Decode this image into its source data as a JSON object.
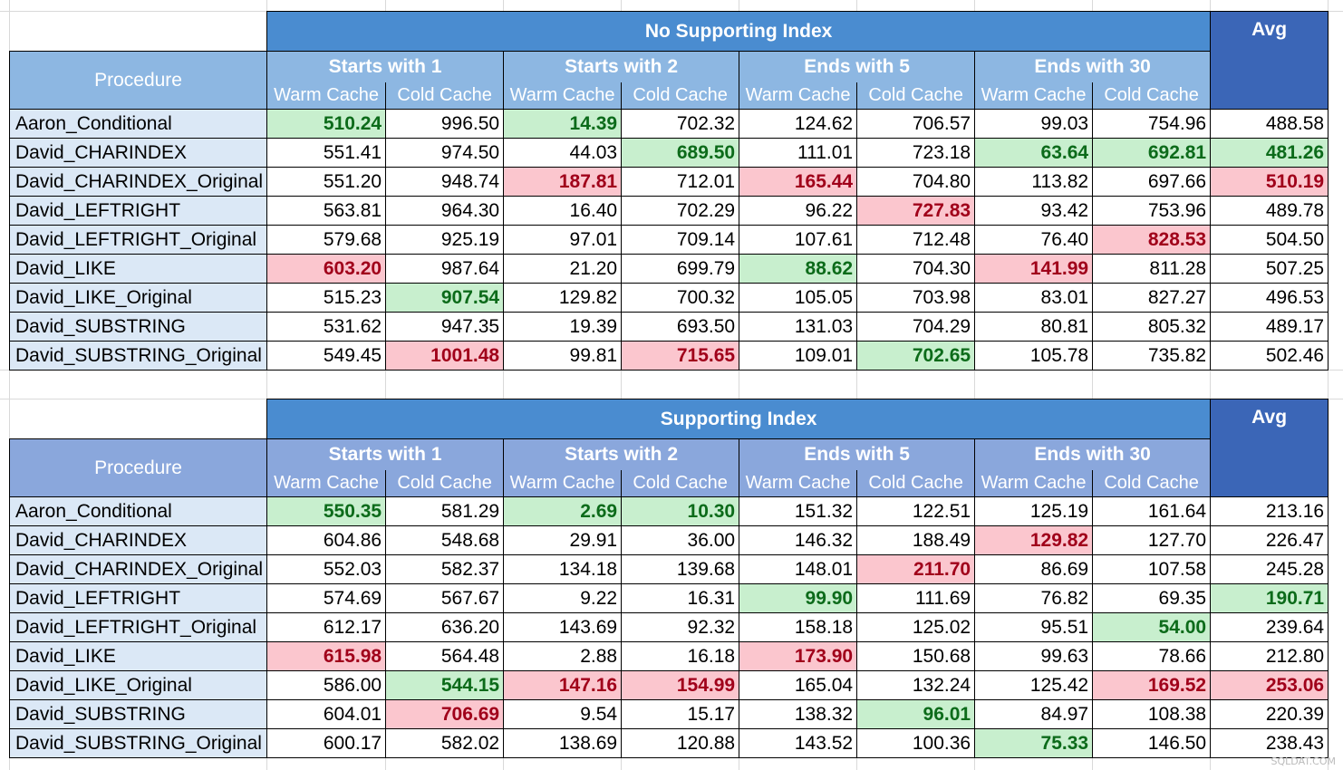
{
  "watermark": "SQLDAT.COM",
  "colors": {
    "good_bg": "#c8efce",
    "good_text": "#0c6b1a",
    "bad_bg": "#fbc6ce",
    "bad_text": "#a0001a",
    "header_blue": "#4a8cd0",
    "avg_blue": "#3b66b7"
  },
  "tables": [
    {
      "title": "No Supporting Index",
      "procedure_header": "Procedure",
      "avg_header": "Avg",
      "groups": [
        "Starts with 1",
        "Starts with 2",
        "Ends with 5",
        "Ends with 30"
      ],
      "subheaders": [
        "Warm Cache",
        "Cold Cache"
      ],
      "rows": [
        {
          "name": "Aaron_Conditional",
          "values": [
            "510.24",
            "996.50",
            "14.39",
            "702.32",
            "124.62",
            "706.57",
            "99.03",
            "754.96",
            "488.58"
          ],
          "marks": [
            "g",
            "",
            "g",
            "",
            "",
            "",
            "",
            "",
            ""
          ]
        },
        {
          "name": "David_CHARINDEX",
          "values": [
            "551.41",
            "974.50",
            "44.03",
            "689.50",
            "111.01",
            "723.18",
            "63.64",
            "692.81",
            "481.26"
          ],
          "marks": [
            "",
            "",
            "",
            "g",
            "",
            "",
            "g",
            "g",
            "g"
          ]
        },
        {
          "name": "David_CHARINDEX_Original",
          "values": [
            "551.20",
            "948.74",
            "187.81",
            "712.01",
            "165.44",
            "704.80",
            "113.82",
            "697.66",
            "510.19"
          ],
          "marks": [
            "",
            "",
            "b",
            "",
            "b",
            "",
            "",
            "",
            "b"
          ]
        },
        {
          "name": "David_LEFTRIGHT",
          "values": [
            "563.81",
            "964.30",
            "16.40",
            "702.29",
            "96.22",
            "727.83",
            "93.42",
            "753.96",
            "489.78"
          ],
          "marks": [
            "",
            "",
            "",
            "",
            "",
            "b",
            "",
            "",
            ""
          ]
        },
        {
          "name": "David_LEFTRIGHT_Original",
          "values": [
            "579.68",
            "925.19",
            "97.01",
            "709.14",
            "107.61",
            "712.48",
            "76.40",
            "828.53",
            "504.50"
          ],
          "marks": [
            "",
            "",
            "",
            "",
            "",
            "",
            "",
            "b",
            ""
          ]
        },
        {
          "name": "David_LIKE",
          "values": [
            "603.20",
            "987.64",
            "21.20",
            "699.79",
            "88.62",
            "704.30",
            "141.99",
            "811.28",
            "507.25"
          ],
          "marks": [
            "b",
            "",
            "",
            "",
            "g",
            "",
            "b",
            "",
            ""
          ]
        },
        {
          "name": "David_LIKE_Original",
          "values": [
            "515.23",
            "907.54",
            "129.82",
            "700.32",
            "105.05",
            "703.98",
            "83.01",
            "827.27",
            "496.53"
          ],
          "marks": [
            "",
            "g",
            "",
            "",
            "",
            "",
            "",
            "",
            ""
          ]
        },
        {
          "name": "David_SUBSTRING",
          "values": [
            "531.62",
            "947.35",
            "19.39",
            "693.50",
            "131.03",
            "704.29",
            "80.81",
            "805.32",
            "489.17"
          ],
          "marks": [
            "",
            "",
            "",
            "",
            "",
            "",
            "",
            "",
            ""
          ]
        },
        {
          "name": "David_SUBSTRING_Original",
          "values": [
            "549.45",
            "1001.48",
            "99.81",
            "715.65",
            "109.01",
            "702.65",
            "105.78",
            "735.82",
            "502.46"
          ],
          "marks": [
            "",
            "b",
            "",
            "b",
            "",
            "g",
            "",
            "",
            ""
          ]
        }
      ]
    },
    {
      "title": "Supporting Index",
      "procedure_header": "Procedure",
      "avg_header": "Avg",
      "groups": [
        "Starts with 1",
        "Starts with 2",
        "Ends with 5",
        "Ends with 30"
      ],
      "subheaders": [
        "Warm Cache",
        "Cold Cache"
      ],
      "rows": [
        {
          "name": "Aaron_Conditional",
          "values": [
            "550.35",
            "581.29",
            "2.69",
            "10.30",
            "151.32",
            "122.51",
            "125.19",
            "161.64",
            "213.16"
          ],
          "marks": [
            "g",
            "",
            "g",
            "g",
            "",
            "",
            "",
            "",
            ""
          ]
        },
        {
          "name": "David_CHARINDEX",
          "values": [
            "604.86",
            "548.68",
            "29.91",
            "36.00",
            "146.32",
            "188.49",
            "129.82",
            "127.70",
            "226.47"
          ],
          "marks": [
            "",
            "",
            "",
            "",
            "",
            "",
            "b",
            "",
            ""
          ]
        },
        {
          "name": "David_CHARINDEX_Original",
          "values": [
            "552.03",
            "582.37",
            "134.18",
            "139.68",
            "148.01",
            "211.70",
            "86.69",
            "107.58",
            "245.28"
          ],
          "marks": [
            "",
            "",
            "",
            "",
            "",
            "b",
            "",
            "",
            ""
          ]
        },
        {
          "name": "David_LEFTRIGHT",
          "values": [
            "574.69",
            "567.67",
            "9.22",
            "16.31",
            "99.90",
            "111.69",
            "76.82",
            "69.35",
            "190.71"
          ],
          "marks": [
            "",
            "",
            "",
            "",
            "g",
            "",
            "",
            "",
            "g"
          ]
        },
        {
          "name": "David_LEFTRIGHT_Original",
          "values": [
            "612.17",
            "636.20",
            "143.69",
            "92.32",
            "158.18",
            "125.02",
            "95.51",
            "54.00",
            "239.64"
          ],
          "marks": [
            "",
            "",
            "",
            "",
            "",
            "",
            "",
            "g",
            ""
          ]
        },
        {
          "name": "David_LIKE",
          "values": [
            "615.98",
            "564.48",
            "2.88",
            "16.18",
            "173.90",
            "150.68",
            "99.63",
            "78.66",
            "212.80"
          ],
          "marks": [
            "b",
            "",
            "",
            "",
            "b",
            "",
            "",
            "",
            ""
          ]
        },
        {
          "name": "David_LIKE_Original",
          "values": [
            "586.00",
            "544.15",
            "147.16",
            "154.99",
            "165.04",
            "132.24",
            "125.42",
            "169.52",
            "253.06"
          ],
          "marks": [
            "",
            "g",
            "b",
            "b",
            "",
            "",
            "",
            "b",
            "b"
          ]
        },
        {
          "name": "David_SUBSTRING",
          "values": [
            "604.01",
            "706.69",
            "9.54",
            "15.17",
            "138.32",
            "96.01",
            "84.97",
            "108.38",
            "220.39"
          ],
          "marks": [
            "",
            "b",
            "",
            "",
            "",
            "g",
            "",
            "",
            ""
          ]
        },
        {
          "name": "David_SUBSTRING_Original",
          "values": [
            "600.17",
            "582.02",
            "138.69",
            "120.88",
            "143.52",
            "100.36",
            "75.33",
            "146.50",
            "238.43"
          ],
          "marks": [
            "",
            "",
            "",
            "",
            "",
            "",
            "g",
            "",
            ""
          ]
        }
      ]
    }
  ]
}
